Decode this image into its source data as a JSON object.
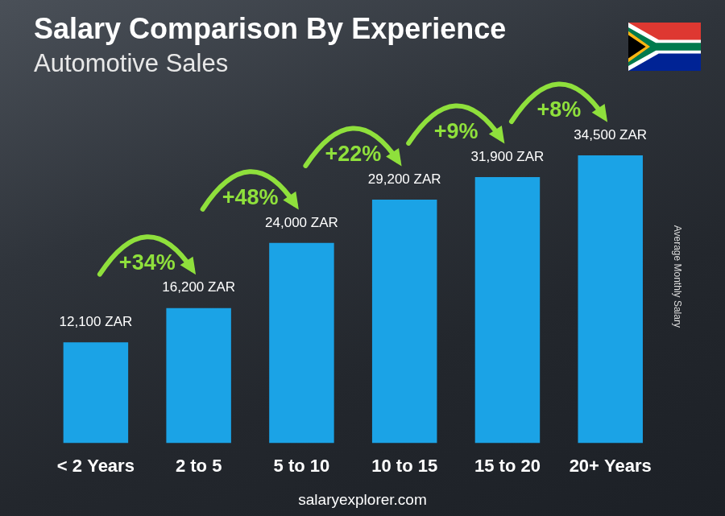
{
  "chart_data": {
    "type": "bar",
    "title": "Salary Comparison By Experience",
    "subtitle": "Automotive Sales",
    "y_label": "Average Monthly Salary",
    "source": "salaryexplorer.com",
    "categories": [
      "< 2 Years",
      "2 to 5",
      "5 to 10",
      "10 to 15",
      "15 to 20",
      "20+ Years"
    ],
    "values": [
      12100,
      16200,
      24000,
      29200,
      31900,
      34500
    ],
    "value_labels": [
      "12,100 ZAR",
      "16,200 ZAR",
      "24,000 ZAR",
      "29,200 ZAR",
      "31,900 ZAR",
      "34,500 ZAR"
    ],
    "data_labels": true,
    "annotations": [
      "+34%",
      "+48%",
      "+22%",
      "+9%",
      "+8%"
    ],
    "color": "#1ba3e6",
    "ylim": [
      0,
      40000
    ],
    "yticks": [
      0,
      10000,
      20000,
      30000,
      40000
    ],
    "grid": false,
    "tick_labels": "x"
  }
}
